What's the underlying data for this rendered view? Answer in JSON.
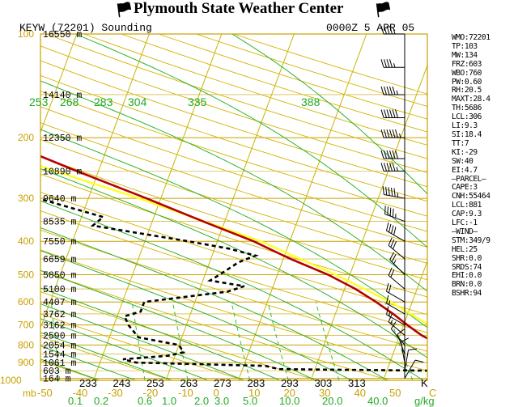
{
  "header": {
    "title": "Plymouth State Weather Center",
    "station": "KEYW (72201) Sounding",
    "time": "0000Z  5 APR 05"
  },
  "stats": [
    "WMO:72201",
    "TP:103",
    "MW:134",
    "FRZ:603",
    "WBO:760",
    "PW:0.60",
    "RH:20.5",
    "MAXT:28.4",
    "TH:5686",
    "LCL:306",
    "LI:9.3",
    "SI:18.4",
    "TT:7",
    "KI:-29",
    "SW:40",
    "EI:4.7",
    "—PARCEL—",
    "CAPE:3",
    "CNH:55464",
    "LCL:881",
    "CAP:9.3",
    "LFC:-1",
    "—WIND—",
    "STM:349/9",
    "HEL:25",
    "SHR:0.0",
    "SRDS:74",
    "EHI:0.0",
    "BRN:0.0",
    "BSHR:94"
  ],
  "colors": {
    "axis": "#c8a000",
    "isotherm": "#c8b400",
    "dry_adiabat": "#d2b400",
    "moist_adiabat": "#22aa22",
    "mixing_ratio": "#33bb33",
    "temperature": "#b40000",
    "dewpoint": "#000000",
    "parcel": "#ffff22"
  },
  "chart_data": {
    "type": "line",
    "title": "KEYW (72201) Sounding",
    "pressure_levels_mb": [
      100,
      200,
      300,
      400,
      500,
      600,
      700,
      800,
      900,
      1000
    ],
    "pressure_label": "mb",
    "temperature_ticks_c": [
      -50,
      -40,
      -30,
      -20,
      -10,
      0,
      10,
      20,
      30,
      40,
      50
    ],
    "temperature_unit": "C",
    "theta_ticks_top_k": [
      253,
      268,
      283,
      304,
      335,
      388
    ],
    "theta_ticks_bottom_k": [
      233,
      243,
      253,
      263,
      273,
      283,
      293,
      303,
      313
    ],
    "theta_unit": "K",
    "mixing_ratio_ticks": [
      0.1,
      0.2,
      0.6,
      1.0,
      2.0,
      3.0,
      5.0,
      10.0,
      20.0,
      40.0
    ],
    "mixing_ratio_unit": "g/kg",
    "heights": [
      {
        "p": 100,
        "label": "16550 m"
      },
      {
        "p": 150,
        "label": "14140 m"
      },
      {
        "p": 200,
        "label": "12350 m"
      },
      {
        "p": 250,
        "label": "10890 m"
      },
      {
        "p": 300,
        "label": "9640 m"
      },
      {
        "p": 350,
        "label": "8535 m"
      },
      {
        "p": 400,
        "label": "7550 m"
      },
      {
        "p": 450,
        "label": "6659 m"
      },
      {
        "p": 500,
        "label": "5850 m"
      },
      {
        "p": 550,
        "label": "5100 m"
      },
      {
        "p": 600,
        "label": "4407 m"
      },
      {
        "p": 650,
        "label": "3762 m"
      },
      {
        "p": 700,
        "label": "3162 m"
      },
      {
        "p": 750,
        "label": "2590 m"
      },
      {
        "p": 800,
        "label": "2054 m"
      },
      {
        "p": 850,
        "label": "1544 m"
      },
      {
        "p": 900,
        "label": "1061 m"
      },
      {
        "p": 950,
        "label": "603 m"
      },
      {
        "p": 1000,
        "label": "164 m"
      }
    ],
    "series": [
      {
        "name": "temperature",
        "p": [
          1013,
          1000,
          950,
          925,
          900,
          850,
          800,
          750,
          700,
          650,
          600,
          550,
          500,
          450,
          400,
          350,
          300,
          250,
          200,
          175,
          150,
          125,
          100
        ],
        "t": [
          25.5,
          25.0,
          22.0,
          20.0,
          20.8,
          19.0,
          16.0,
          13.0,
          10.5,
          8.0,
          5.0,
          1.5,
          -3.0,
          -9.0,
          -15.0,
          -23.0,
          -32.0,
          -43.0,
          -56.0,
          -58.0,
          -60.0,
          -62.0,
          -63.0
        ]
      },
      {
        "name": "dewpoint",
        "p": [
          1013,
          1000,
          960,
          950,
          940,
          920,
          900,
          880,
          860,
          840,
          800,
          760,
          700,
          660,
          640,
          600,
          560,
          540,
          520,
          500,
          460,
          440,
          420,
          400,
          360,
          340,
          300,
          260,
          240,
          200,
          170,
          150,
          130,
          110,
          100
        ],
        "t": [
          20.0,
          18.0,
          16.5,
          16.0,
          -5.0,
          -7.0,
          -25.0,
          -27.0,
          -21.0,
          -19.0,
          -20.0,
          -26.0,
          -28.0,
          -29.0,
          -27.0,
          -27.0,
          -16.0,
          -14.0,
          -19.0,
          -18.0,
          -16.0,
          -14.0,
          -18.0,
          -24.0,
          -38.0,
          -37.0,
          -47.0,
          -59.0,
          -66.0,
          -79.0,
          -82.0,
          -80.0,
          -82.0,
          -83.0,
          -81.0
        ]
      },
      {
        "name": "parcel",
        "p": [
          1013,
          1000,
          950,
          900,
          881,
          850,
          800,
          700,
          600,
          500,
          400,
          300,
          250,
          200,
          150,
          100
        ],
        "t": [
          25.5,
          25.0,
          22.5,
          21.8,
          21.4,
          20.3,
          18.5,
          13.5,
          7.0,
          -2.0,
          -14.0,
          -33.0,
          -46.0,
          -61.0,
          -80.0,
          -105.0
        ]
      }
    ],
    "wind_barbs": [
      {
        "p": 100,
        "dir": 270,
        "kt": 45
      },
      {
        "p": 125,
        "dir": 270,
        "kt": 45
      },
      {
        "p": 150,
        "dir": 270,
        "kt": 55
      },
      {
        "p": 175,
        "dir": 270,
        "kt": 60
      },
      {
        "p": 200,
        "dir": 270,
        "kt": 65
      },
      {
        "p": 230,
        "dir": 270,
        "kt": 60
      },
      {
        "p": 250,
        "dir": 270,
        "kt": 55
      },
      {
        "p": 300,
        "dir": 280,
        "kt": 55
      },
      {
        "p": 350,
        "dir": 290,
        "kt": 45
      },
      {
        "p": 400,
        "dir": 300,
        "kt": 40
      },
      {
        "p": 450,
        "dir": 310,
        "kt": 30
      },
      {
        "p": 500,
        "dir": 315,
        "kt": 25
      },
      {
        "p": 550,
        "dir": 310,
        "kt": 20
      },
      {
        "p": 600,
        "dir": 300,
        "kt": 20
      },
      {
        "p": 650,
        "dir": 300,
        "kt": 15
      },
      {
        "p": 700,
        "dir": 300,
        "kt": 15
      },
      {
        "p": 750,
        "dir": 310,
        "kt": 15
      },
      {
        "p": 800,
        "dir": 320,
        "kt": 10
      },
      {
        "p": 850,
        "dir": 340,
        "kt": 10
      },
      {
        "p": 900,
        "dir": 350,
        "kt": 10
      },
      {
        "p": 950,
        "dir": 10,
        "kt": 10
      },
      {
        "p": 1000,
        "dir": 30,
        "kt": 10
      }
    ]
  }
}
